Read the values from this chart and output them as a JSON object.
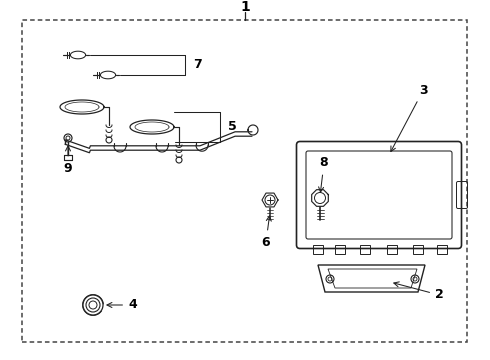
{
  "bg_color": "#ffffff",
  "border_color": "#444444",
  "line_color": "#222222",
  "label_color": "#000000",
  "fig_width": 4.9,
  "fig_height": 3.6,
  "dpi": 100
}
